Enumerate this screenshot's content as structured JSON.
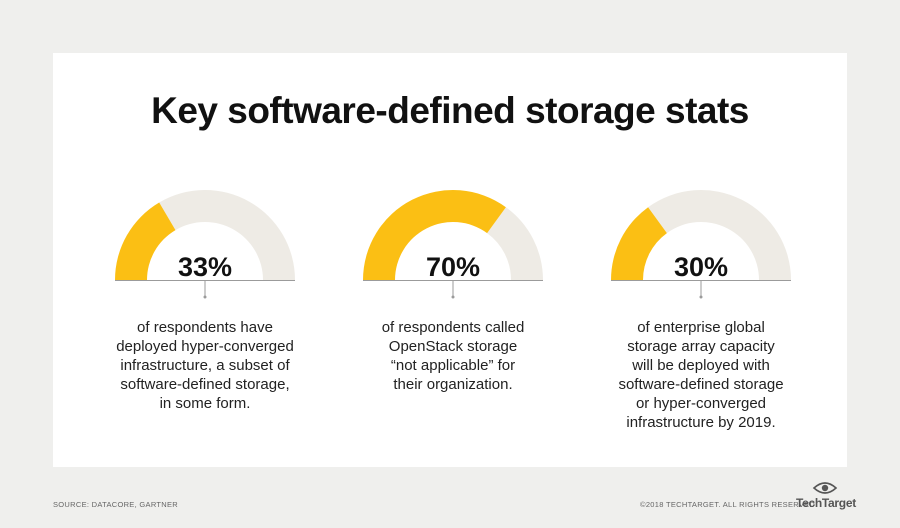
{
  "title": "Key software-defined storage stats",
  "colors": {
    "filled": "#fbbf14",
    "track": "#eeebe5",
    "connector": "#9b9b9b"
  },
  "chart_data": [
    {
      "type": "gauge",
      "value": 33,
      "max": 100,
      "label": "33%",
      "text": [
        "of respondents have",
        "deployed hyper-converged",
        "infrastructure, a subset of",
        "software-defined storage,",
        "in some form."
      ]
    },
    {
      "type": "gauge",
      "value": 70,
      "max": 100,
      "label": "70%",
      "text": [
        "of respondents called",
        "OpenStack storage",
        "“not applicable” for",
        "their organization."
      ]
    },
    {
      "type": "gauge",
      "value": 30,
      "max": 100,
      "label": "30%",
      "text": [
        "of enterprise global",
        "storage array capacity",
        "will be deployed with",
        "software-defined storage",
        "or hyper-converged",
        "infrastructure by 2019."
      ]
    }
  ],
  "footer": {
    "source": "SOURCE: DATACORE, GARTNER",
    "copyright": "©2018 TECHTARGET. ALL RIGHTS RESERVED",
    "brand": "TechTarget",
    "brand_icon": "eye-icon"
  }
}
